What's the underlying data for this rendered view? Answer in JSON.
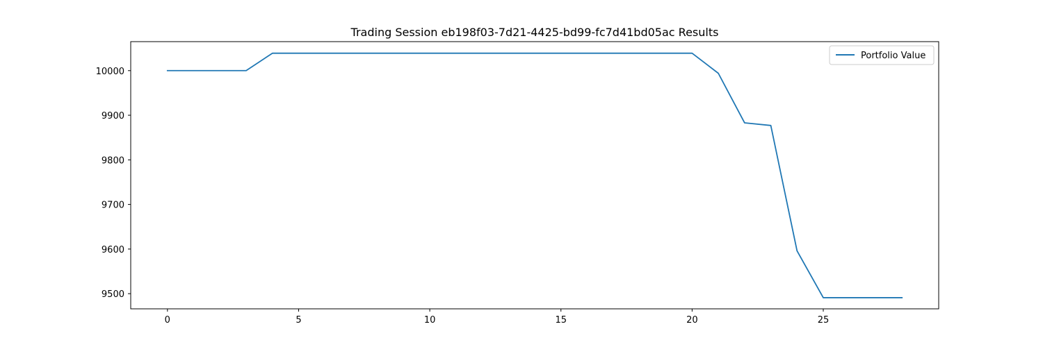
{
  "chart_data": {
    "type": "line",
    "title": "Trading Session eb198f03-7d21-4425-bd99-fc7d41bd05ac Results",
    "xlabel": "",
    "ylabel": "",
    "xlim": [
      -1.4,
      29.4
    ],
    "ylim": [
      9466,
      10065
    ],
    "x_ticks": [
      0,
      5,
      10,
      15,
      20,
      25
    ],
    "y_ticks": [
      9500,
      9600,
      9700,
      9800,
      9900,
      10000
    ],
    "grid": false,
    "legend_position": "top-right",
    "series": [
      {
        "name": "Portfolio Value",
        "color": "#1f77b4",
        "x": [
          0,
          1,
          2,
          3,
          4,
          5,
          6,
          7,
          8,
          9,
          10,
          11,
          12,
          13,
          14,
          15,
          16,
          17,
          18,
          19,
          20,
          21,
          22,
          23,
          24,
          25,
          26,
          27,
          28
        ],
        "values": [
          10000,
          10000,
          10000,
          10000,
          10039,
          10039,
          10039,
          10039,
          10039,
          10039,
          10039,
          10039,
          10039,
          10039,
          10039,
          10039,
          10039,
          10039,
          10039,
          10039,
          10039,
          9994,
          9883,
          9877,
          9596,
          9491,
          9491,
          9491,
          9491
        ]
      }
    ]
  }
}
